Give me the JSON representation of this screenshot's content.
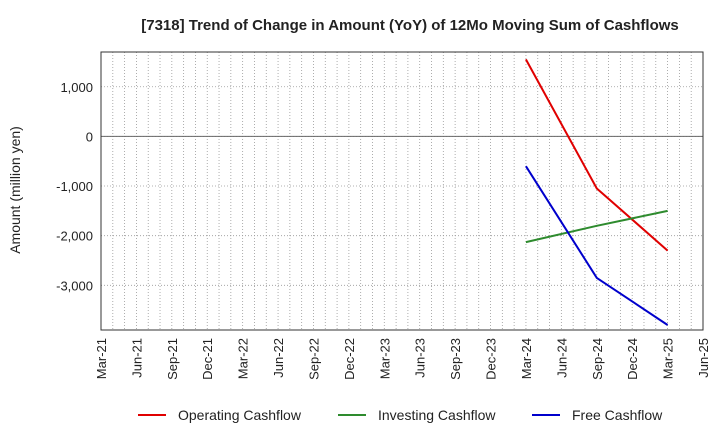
{
  "chart_data": {
    "type": "line",
    "title": "[7318]  Trend of Change in Amount (YoY) of 12Mo Moving Sum of Cashflows",
    "ylabel": "Amount (million yen)",
    "xlabel": "",
    "x_ticks": [
      "Mar-21",
      "Jun-21",
      "Sep-21",
      "Dec-21",
      "Mar-22",
      "Jun-22",
      "Sep-22",
      "Dec-22",
      "Mar-23",
      "Jun-23",
      "Sep-23",
      "Dec-23",
      "Mar-24",
      "Jun-24",
      "Sep-24",
      "Dec-24",
      "Mar-25",
      "Jun-25"
    ],
    "y_ticks": [
      1000,
      0,
      -1000,
      -2000,
      -3000
    ],
    "y_tick_labels": [
      "1,000",
      "0",
      "-1,000",
      "-2,000",
      "-3,000"
    ],
    "ylim": [
      -3900,
      1700
    ],
    "grid": true,
    "legend_position": "bottom",
    "series": [
      {
        "name": "Operating Cashflow",
        "color": "#e00000",
        "points": [
          [
            "Mar-24",
            1550
          ],
          [
            "Sep-24",
            -1050
          ],
          [
            "Mar-25",
            -2300
          ]
        ]
      },
      {
        "name": "Investing Cashflow",
        "color": "#2e8b2e",
        "points": [
          [
            "Mar-24",
            -2130
          ],
          [
            "Sep-24",
            -1800
          ],
          [
            "Mar-25",
            -1500
          ]
        ]
      },
      {
        "name": "Free Cashflow",
        "color": "#0000cc",
        "points": [
          [
            "Mar-24",
            -600
          ],
          [
            "Sep-24",
            -2850
          ],
          [
            "Mar-25",
            -3800
          ]
        ]
      }
    ]
  }
}
